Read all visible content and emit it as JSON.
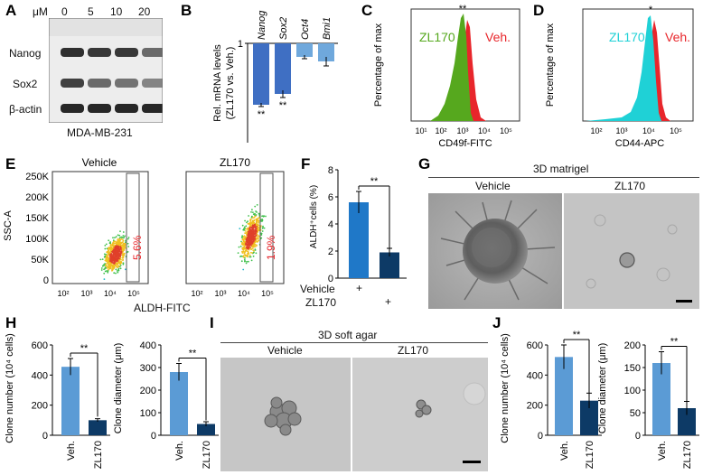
{
  "panels": {
    "A": {
      "letter": "A",
      "unit": "μM",
      "doses": [
        "0",
        "5",
        "10",
        "20"
      ],
      "rows": [
        "Nanog",
        "Sox2",
        "β-actin"
      ],
      "cell_line": "MDA-MB-231",
      "band_intensity": {
        "Nanog": [
          0.9,
          0.85,
          0.85,
          0.55
        ],
        "Sox2": [
          0.8,
          0.55,
          0.5,
          0.4
        ],
        "β-actin": [
          0.95,
          0.95,
          0.95,
          0.95
        ]
      }
    },
    "B": {
      "letter": "B",
      "ylabel_line1": "Rel. mRNA levels",
      "ylabel_line2": "(ZL170 vs. Veh.)",
      "sig": "**"
    },
    "C": {
      "letter": "C",
      "ylabel": "Percentage of max",
      "xlabel": "CD49f-FITC",
      "label_treat": "ZL170",
      "label_veh": "Veh.",
      "sig": "**",
      "x_ticks": [
        "10¹",
        "10²",
        "10³",
        "10⁴",
        "10⁵"
      ]
    },
    "D": {
      "letter": "D",
      "ylabel": "Percentage of max",
      "xlabel": "CD44-APC",
      "label_treat": "ZL170",
      "label_veh": "Veh.",
      "sig": "*",
      "x_ticks": [
        "10²",
        "10³",
        "10⁴",
        "10⁵"
      ]
    },
    "E": {
      "letter": "E",
      "title_left": "Vehicle",
      "title_right": "ZL170",
      "ylabel": "SSC-A",
      "xlabel": "ALDH-FITC",
      "y_ticks": [
        "250K",
        "200K",
        "150K",
        "100K",
        "50K",
        "0"
      ],
      "x_ticks": [
        "10²",
        "10³",
        "10⁴",
        "10⁵"
      ],
      "pct_left": "5.6%",
      "pct_right": "1.9%"
    },
    "F": {
      "letter": "F",
      "ylabel": "ALDH⁺cells (%)",
      "row1": "Vehicle",
      "row2": "ZL170",
      "row1_marks": [
        "+",
        ""
      ],
      "row2_marks": [
        "",
        "+"
      ],
      "sig": "**"
    },
    "G": {
      "letter": "G",
      "title": "3D matrigel",
      "left": "Vehicle",
      "right": "ZL170"
    },
    "H": {
      "letter": "H",
      "ylabel1": "Clone number (10⁴ cells)",
      "ylabel2": "Clone diameter (μm)",
      "sig": "**"
    },
    "I": {
      "letter": "I",
      "title": "3D soft agar",
      "left": "Vehicle",
      "right": "ZL170"
    },
    "J": {
      "letter": "J",
      "ylabel1": "Clone number (10⁴ cells)",
      "ylabel2": "Clone diameter (μm)",
      "sig": "**"
    }
  },
  "chart_data": [
    {
      "id": "B",
      "type": "bar",
      "categories": [
        "Nanog",
        "Sox2",
        "Oct4",
        "Bmi1"
      ],
      "values": [
        0.32,
        0.44,
        0.85,
        0.8
      ],
      "errors": [
        0.02,
        0.04,
        0.02,
        0.05
      ],
      "colors": [
        "#3f6fc3",
        "#3f6fc3",
        "#6fa8dc",
        "#6fa8dc"
      ],
      "significance": [
        "**",
        "**",
        "",
        ""
      ],
      "ylim": [
        0,
        1.0
      ],
      "yticks": [
        "1"
      ],
      "ylabel": "Rel. mRNA levels (ZL170 vs. Veh.)"
    },
    {
      "id": "F",
      "type": "bar",
      "categories": [
        "Vehicle",
        "ZL170"
      ],
      "values": [
        5.6,
        1.9
      ],
      "errors": [
        0.8,
        0.3
      ],
      "colors": [
        "#1f78c8",
        "#0d3a66"
      ],
      "ylim": [
        0,
        8
      ],
      "yticks": [
        "0",
        "2",
        "4",
        "6",
        "8"
      ],
      "ylabel": "ALDH⁺cells (%)"
    },
    {
      "id": "H1",
      "type": "bar",
      "categories": [
        "Veh.",
        "ZL170"
      ],
      "values": [
        455,
        100
      ],
      "errors": [
        55,
        10
      ],
      "colors": [
        "#5b9bd5",
        "#0d3a66"
      ],
      "ylim": [
        0,
        600
      ],
      "yticks": [
        "0",
        "200",
        "400",
        "600"
      ],
      "ylabel": "Clone number (10⁴ cells)"
    },
    {
      "id": "H2",
      "type": "bar",
      "categories": [
        "Veh.",
        "ZL170"
      ],
      "values": [
        280,
        50
      ],
      "errors": [
        38,
        10
      ],
      "colors": [
        "#5b9bd5",
        "#0d3a66"
      ],
      "ylim": [
        0,
        400
      ],
      "yticks": [
        "0",
        "100",
        "200",
        "300",
        "400"
      ],
      "ylabel": "Clone diameter (μm)"
    },
    {
      "id": "J1",
      "type": "bar",
      "categories": [
        "Veh.",
        "ZL170"
      ],
      "values": [
        520,
        230
      ],
      "errors": [
        80,
        50
      ],
      "colors": [
        "#5b9bd5",
        "#0d3a66"
      ],
      "ylim": [
        0,
        600
      ],
      "yticks": [
        "0",
        "200",
        "400",
        "600"
      ],
      "ylabel": "Clone number (10⁴ cells)"
    },
    {
      "id": "J2",
      "type": "bar",
      "categories": [
        "Veh.",
        "ZL170"
      ],
      "values": [
        160,
        60
      ],
      "errors": [
        25,
        15
      ],
      "colors": [
        "#5b9bd5",
        "#0d3a66"
      ],
      "ylim": [
        0,
        200
      ],
      "yticks": [
        "0",
        "50",
        "100",
        "150",
        "200"
      ],
      "ylabel": "Clone diameter (μm)"
    }
  ],
  "colors": {
    "zl170_green": "#56a81e",
    "veh_red": "#e8262b",
    "cyan": "#1fd1d6"
  }
}
